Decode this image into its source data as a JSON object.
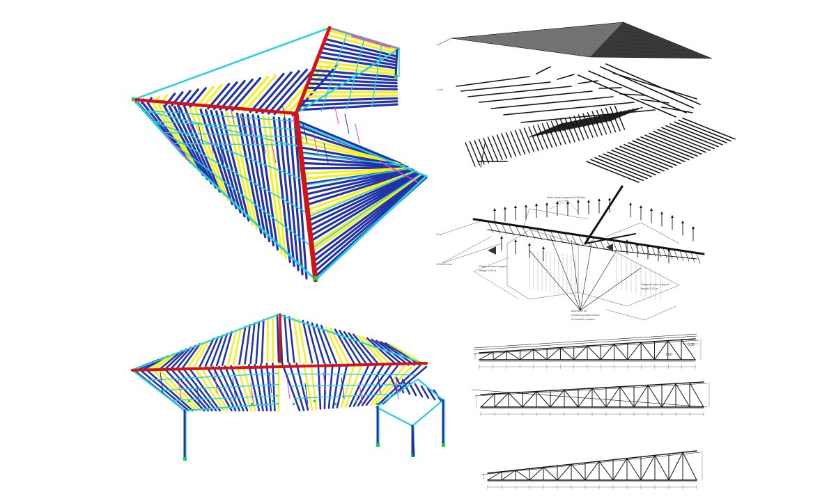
{
  "figure": {
    "panels": [
      "model-top-perspective",
      "model-bottom-perspective",
      "roof-layer-cladding",
      "roof-layer-battens",
      "roof-layer-rafters",
      "structure-axonometric",
      "truss-elevation-1",
      "truss-elevation-2",
      "truss-elevation-3"
    ]
  },
  "colors": {
    "ridge": "#d21414",
    "rafter": "#2233a8",
    "edge_beam": "#22d0e0",
    "infill": "#f3ef22",
    "brace": "#e040d0",
    "edge_grey": "#8a8fb4",
    "support": "#17d44c",
    "line": "#111111"
  },
  "annotations": {
    "axo_top": "Steel beam supports 2x150mm",
    "axo_left_1": "2 ms",
    "axo_left_2": "125x125 mm",
    "axo_mid_1": "Diagonal steel support",
    "axo_mid_2": "length 1,90 m",
    "axo_right_1": "Diagonal steel support",
    "axo_right_2": "length 3,70 m",
    "axo_bottom_1": "anchored on",
    "axo_bottom_2": "reinforcing steel 50mm",
    "axo_bottom_3": "in concrete column",
    "layer_label": "2 ms",
    "dim_top_1": "0,35",
    "dim_top_2": "1,60"
  }
}
